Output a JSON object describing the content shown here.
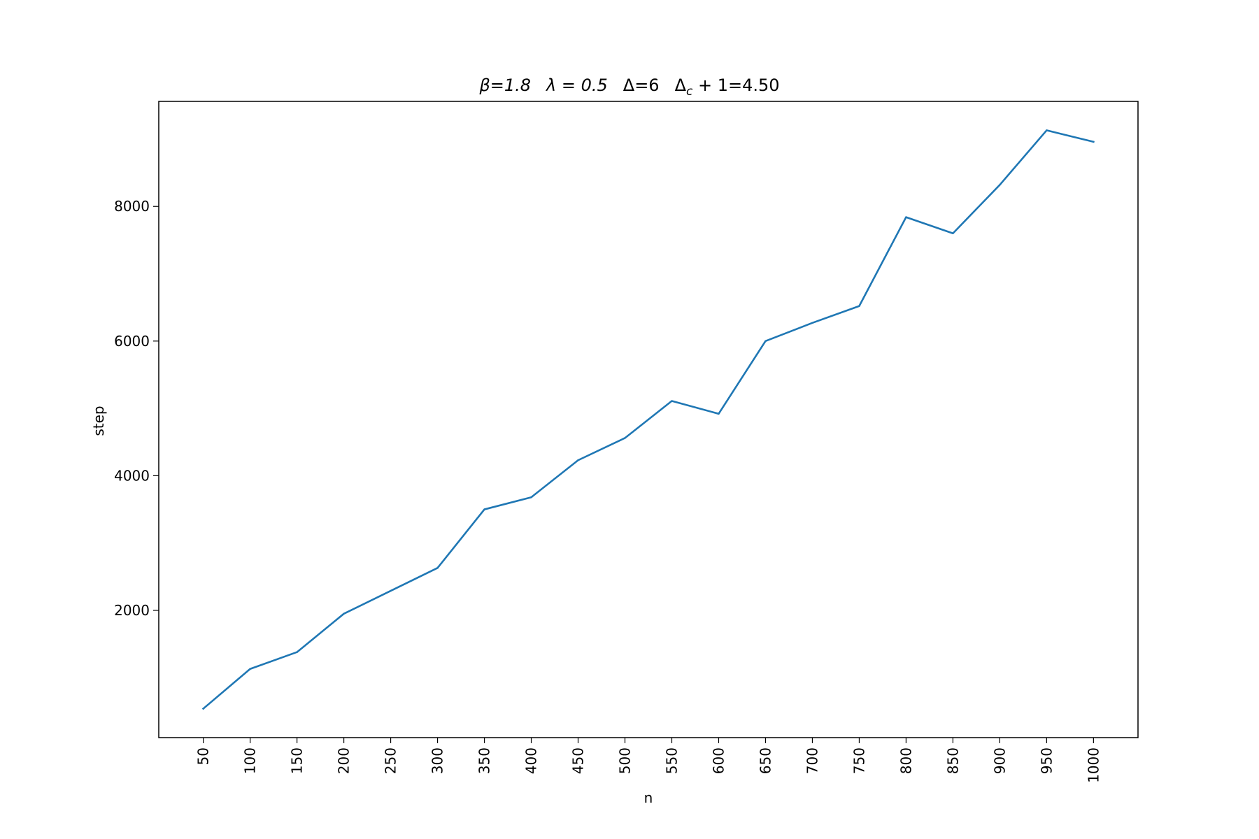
{
  "chart_data": {
    "type": "line",
    "title": "β=1.8   λ = 0.5   Δ=6   Δc + 1=4.50",
    "title_parts": {
      "beta": "β=1.8",
      "lambda": "λ = 0.5",
      "delta": "Δ=6",
      "delta_c_base": "Δ",
      "delta_c_sub": "c",
      "delta_c_rest": " + 1=4.50"
    },
    "xlabel": "n",
    "ylabel": "step",
    "x": [
      50,
      100,
      150,
      200,
      250,
      300,
      350,
      400,
      450,
      500,
      550,
      600,
      650,
      700,
      750,
      800,
      850,
      900,
      950,
      1000
    ],
    "x_tick_labels": [
      "50",
      "100",
      "150",
      "200",
      "250",
      "300",
      "350",
      "400",
      "450",
      "500",
      "550",
      "600",
      "650",
      "700",
      "750",
      "800",
      "850",
      "900",
      "950",
      "1000"
    ],
    "series": [
      {
        "color": "#1f77b4",
        "values": [
          540,
          1130,
          1380,
          1950,
          2290,
          2630,
          3500,
          3680,
          4230,
          4560,
          5110,
          4920,
          6000,
          6270,
          6520,
          7840,
          7600,
          8320,
          9130,
          8960
        ]
      }
    ],
    "y_ticks": [
      2000,
      4000,
      6000,
      8000
    ],
    "y_tick_labels": [
      "2000",
      "4000",
      "6000",
      "8000"
    ],
    "xlim": [
      2.5,
      1047.5
    ],
    "ylim": [
      110,
      9560
    ],
    "grid": false,
    "legend": "none"
  }
}
